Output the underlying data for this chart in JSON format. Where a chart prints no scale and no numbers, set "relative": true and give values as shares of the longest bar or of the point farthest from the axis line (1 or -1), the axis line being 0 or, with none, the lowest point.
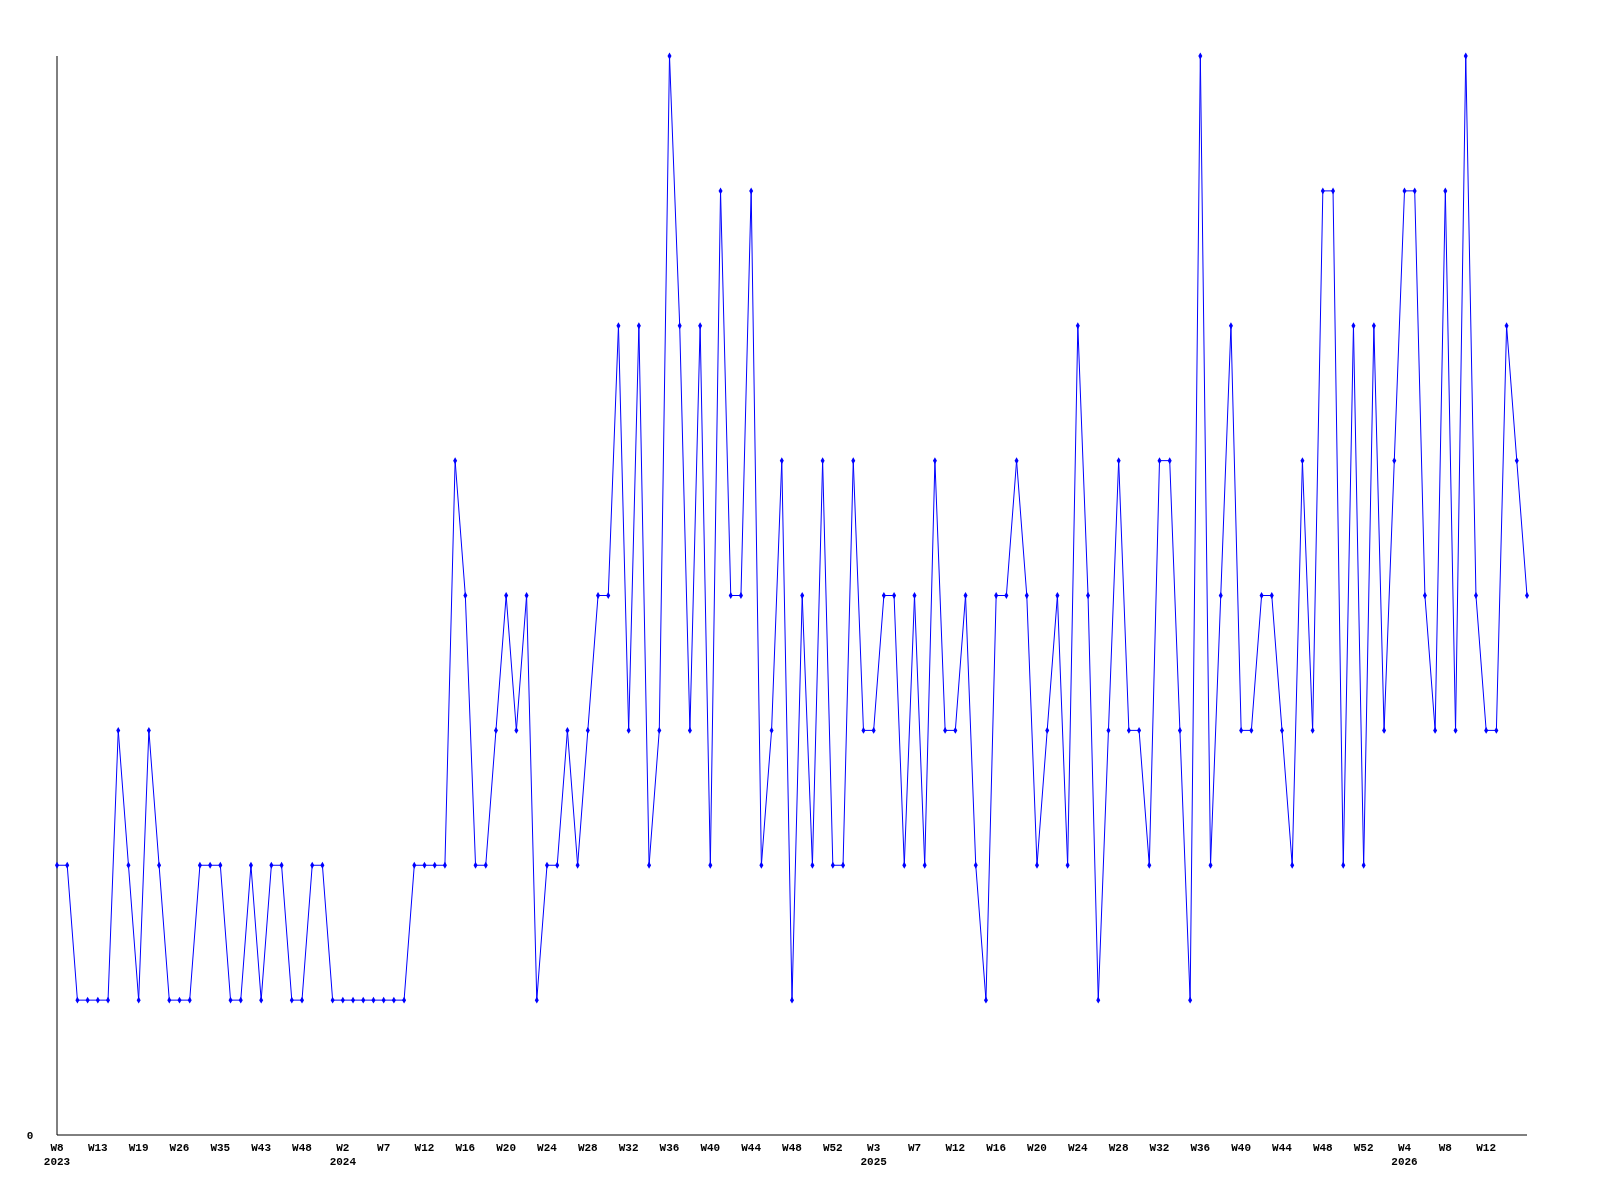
{
  "chart_data": {
    "type": "line",
    "relative": true,
    "marker": "diamond",
    "line_style": "solid",
    "grid": false,
    "categories": [
      "W8\n2023",
      null,
      null,
      null,
      "W13",
      null,
      null,
      null,
      "W19",
      null,
      null,
      null,
      "W26",
      null,
      null,
      null,
      "W35",
      null,
      null,
      null,
      "W43",
      null,
      null,
      null,
      "W48",
      null,
      null,
      null,
      "W2\n2024",
      null,
      null,
      null,
      "W7",
      null,
      null,
      null,
      "W12",
      null,
      null,
      null,
      "W16",
      null,
      null,
      null,
      "W20",
      null,
      null,
      null,
      "W24",
      null,
      null,
      null,
      "W28",
      null,
      null,
      null,
      "W32",
      null,
      null,
      null,
      "W36",
      null,
      null,
      null,
      "W40",
      null,
      null,
      null,
      "W44",
      null,
      null,
      null,
      "W48",
      null,
      null,
      null,
      "W52",
      null,
      null,
      null,
      "W3\n2025",
      null,
      null,
      null,
      "W7",
      null,
      null,
      null,
      "W12",
      null,
      null,
      null,
      "W16",
      null,
      null,
      null,
      "W20",
      null,
      null,
      null,
      "W24",
      null,
      null,
      null,
      "W28",
      null,
      null,
      null,
      "W32",
      null,
      null,
      null,
      "W36",
      null,
      null,
      null,
      "W40",
      null,
      null,
      null,
      "W44",
      null,
      null,
      null,
      "W48",
      null,
      null,
      null,
      "W52",
      null,
      null,
      null,
      "W4\n2026",
      null,
      null,
      null,
      "W8",
      null,
      null,
      null,
      "W12",
      null,
      null,
      null,
      null
    ],
    "series": [
      {
        "color": "#0000ff",
        "values": [
          0.25,
          0.25,
          0.125,
          0.125,
          0.125,
          0.125,
          0.375,
          0.25,
          0.125,
          0.375,
          0.25,
          0.125,
          0.125,
          0.125,
          0.25,
          0.25,
          0.25,
          0.125,
          0.125,
          0.25,
          0.125,
          0.25,
          0.25,
          0.125,
          0.125,
          0.25,
          0.25,
          0.125,
          0.125,
          0.125,
          0.125,
          0.125,
          0.125,
          0.125,
          0.125,
          0.25,
          0.25,
          0.25,
          0.25,
          0.625,
          0.5,
          0.25,
          0.25,
          0.375,
          0.5,
          0.375,
          0.5,
          0.125,
          0.25,
          0.25,
          0.375,
          0.25,
          0.375,
          0.5,
          0.5,
          0.75,
          0.375,
          0.75,
          0.25,
          0.375,
          1,
          0.75,
          0.375,
          0.75,
          0.25,
          0.875,
          0.5,
          0.5,
          0.875,
          0.25,
          0.375,
          0.625,
          0.125,
          0.5,
          0.25,
          0.625,
          0.25,
          0.25,
          0.625,
          0.375,
          0.375,
          0.5,
          0.5,
          0.25,
          0.5,
          0.25,
          0.625,
          0.375,
          0.375,
          0.5,
          0.25,
          0.125,
          0.5,
          0.5,
          0.625,
          0.5,
          0.25,
          0.375,
          0.5,
          0.25,
          0.75,
          0.5,
          0.125,
          0.375,
          0.625,
          0.375,
          0.375,
          0.25,
          0.625,
          0.625,
          0.375,
          0.125,
          1,
          0.25,
          0.5,
          0.75,
          0.375,
          0.375,
          0.5,
          0.5,
          0.375,
          0.25,
          0.625,
          0.375,
          0.875,
          0.875,
          0.25,
          0.75,
          0.25,
          0.75,
          0.375,
          0.625,
          0.875,
          0.875,
          0.5,
          0.375,
          0.875,
          0.375,
          1,
          0.5,
          0.375,
          0.375,
          0.75,
          0.625,
          0.5
        ]
      }
    ],
    "annotations": [
      "0"
    ]
  }
}
